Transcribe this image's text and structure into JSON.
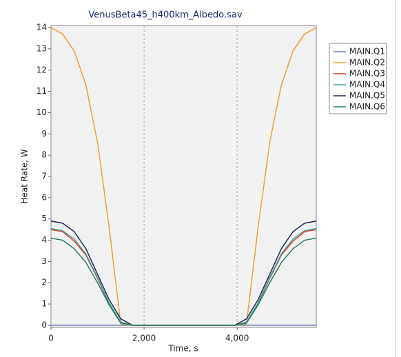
{
  "chart_data": {
    "type": "line",
    "title": "VenusBeta45_h400km_Albedo.sav",
    "x_label": "Time, s",
    "y_label": "Heat Rate, W",
    "x": [
      0,
      250,
      500,
      750,
      1000,
      1250,
      1500,
      1750,
      2850,
      3950,
      4200,
      4450,
      4700,
      4950,
      5200,
      5450,
      5700
    ],
    "series": [
      {
        "name": "MAIN.Q1",
        "color": "#6a7fb5",
        "values": [
          0,
          0,
          0,
          0,
          0,
          0,
          0,
          0,
          0,
          0,
          0,
          0,
          0,
          0,
          0,
          0,
          0
        ]
      },
      {
        "name": "MAIN.Q2",
        "color": "#f0a030",
        "values": [
          14,
          13.7,
          12.9,
          11.3,
          8.6,
          4.6,
          0.05,
          0,
          0,
          0,
          0.05,
          4.6,
          8.6,
          11.3,
          12.9,
          13.7,
          14
        ]
      },
      {
        "name": "MAIN.Q3",
        "color": "#e04020",
        "values": [
          4.5,
          4.4,
          3.95,
          3.3,
          2.2,
          1.0,
          0.15,
          0,
          0,
          0,
          0.15,
          1.0,
          2.2,
          3.3,
          3.95,
          4.4,
          4.5
        ]
      },
      {
        "name": "MAIN.Q4",
        "color": "#40a0a0",
        "values": [
          4.55,
          4.45,
          4.05,
          3.35,
          2.25,
          1.05,
          0.15,
          0,
          0,
          0,
          0.15,
          1.05,
          2.25,
          3.35,
          4.05,
          4.45,
          4.55
        ]
      },
      {
        "name": "MAIN.Q5",
        "color": "#202860",
        "values": [
          4.9,
          4.8,
          4.4,
          3.6,
          2.4,
          1.2,
          0.3,
          0,
          0,
          0,
          0.3,
          1.2,
          2.4,
          3.6,
          4.4,
          4.8,
          4.9
        ]
      },
      {
        "name": "MAIN.Q6",
        "color": "#208060",
        "values": [
          4.1,
          4.0,
          3.6,
          2.95,
          2.0,
          0.95,
          0.1,
          0,
          0,
          0,
          0.1,
          0.95,
          2.0,
          2.95,
          3.6,
          4.0,
          4.1
        ]
      }
    ],
    "xlim": [
      0,
      5700
    ],
    "xticks": [
      0,
      {
        "value": 2000,
        "label": "2,000"
      },
      {
        "value": 4000,
        "label": "4,000"
      }
    ],
    "ylim": [
      -0.1,
      14.1
    ],
    "yticks": [
      0,
      1,
      2,
      3,
      4,
      5,
      6,
      7,
      8,
      9,
      10,
      11,
      12,
      13,
      14
    ],
    "grid": true,
    "legend": "right"
  }
}
